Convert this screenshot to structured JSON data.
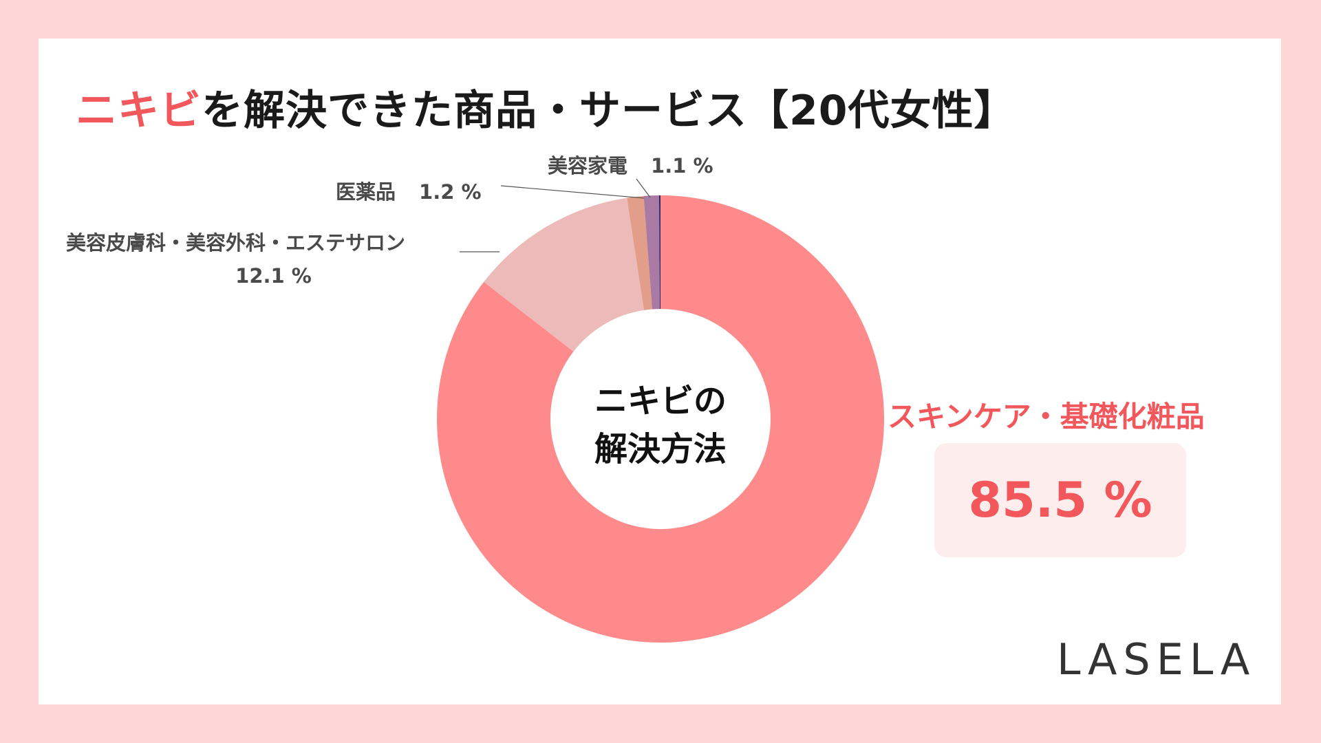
{
  "title": {
    "accent": "ニキビ",
    "rest": "を解決できた商品・サービス【20代女性】"
  },
  "center_label": {
    "line1": "ニキビの",
    "line2": "解決方法"
  },
  "brand": "LASELA",
  "chart_data": {
    "type": "pie",
    "donut": true,
    "title": "ニキビを解決できた商品・サービス【20代女性】",
    "slices": [
      {
        "label": "スキンケア・基礎化粧品",
        "value": 85.5,
        "display": "85.5 %",
        "color": "#fe8a8b"
      },
      {
        "label": "美容皮膚科・美容外科・エステサロン",
        "value": 12.1,
        "display": "12.1 %",
        "color": "#ecbab9"
      },
      {
        "label": "医薬品",
        "value": 1.2,
        "display": "1.2 %",
        "color": "#e29e88"
      },
      {
        "label": "美容家電",
        "value": 1.1,
        "display": "1.1 %",
        "color": "#a87aa4"
      },
      {
        "label": "",
        "value": 0.1,
        "display": "",
        "color": "#2a2a6a"
      }
    ]
  },
  "colors": {
    "accent": "#f2575b",
    "background": "#fdd5d6",
    "card": "#ffffff"
  }
}
